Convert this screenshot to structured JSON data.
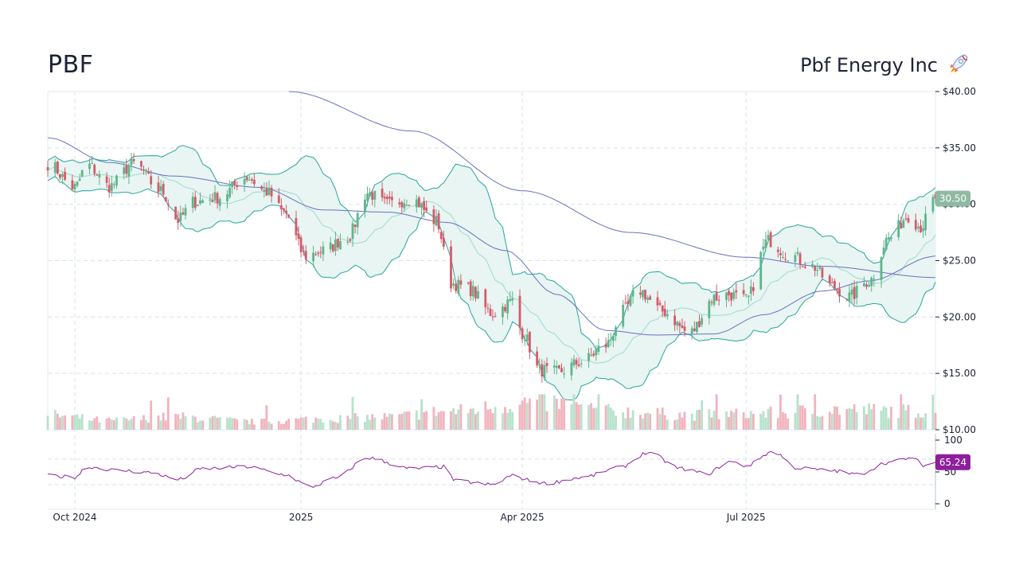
{
  "header": {
    "ticker": "PBF",
    "company": "Pbf Energy Inc"
  },
  "colors": {
    "up": "#5fb58a",
    "down": "#d65a6a",
    "band_line": "#26a69a",
    "band_fill": "#e8f5f3",
    "band_mid": "#9fd9cc",
    "ma": "#6a6fc0",
    "rsi": "#8e1f9c",
    "price_tag": "#8fb9a2",
    "rsi_tag": "#8e1f9c",
    "grid": "#d6e3ea"
  },
  "icons": {
    "logo": "rocket-logo-icon"
  },
  "chart_data": {
    "type": "candlestick",
    "price_axis": {
      "ylim": [
        10,
        40
      ],
      "ticks": [
        "$40.00",
        "$35.00",
        "$30.00",
        "$25.00",
        "$20.00",
        "$15.00",
        "$10.00"
      ]
    },
    "rsi_axis": {
      "ylim": [
        0,
        100
      ],
      "ticks": [
        "100",
        "50",
        "0"
      ]
    },
    "x_axis": {
      "date_range": [
        "2024-09-20",
        "2025-09-16"
      ],
      "labels": [
        {
          "date": "2024-10-01",
          "label": "Oct 2024"
        },
        {
          "date": "2025-01-01",
          "label": "2025"
        },
        {
          "date": "2025-04-01",
          "label": "Apr 2025"
        },
        {
          "date": "2025-07-01",
          "label": "Jul 2025"
        }
      ]
    },
    "last_price_label": "30.50",
    "last_rsi_label": "65.24",
    "grid": true,
    "close_key": [
      {
        "date": "2024-09-20",
        "v": 33.6
      },
      {
        "date": "2024-10-01",
        "v": 31.5
      },
      {
        "date": "2024-10-06",
        "v": 33.5
      },
      {
        "date": "2024-10-15",
        "v": 31.6
      },
      {
        "date": "2024-10-25",
        "v": 33.6
      },
      {
        "date": "2024-11-05",
        "v": 31.2
      },
      {
        "date": "2024-11-12",
        "v": 28.6
      },
      {
        "date": "2024-11-18",
        "v": 30.2
      },
      {
        "date": "2024-11-28",
        "v": 30.6
      },
      {
        "date": "2024-12-10",
        "v": 32.4
      },
      {
        "date": "2024-12-18",
        "v": 31.1
      },
      {
        "date": "2024-12-25",
        "v": 29.3
      },
      {
        "date": "2025-01-03",
        "v": 25.4
      },
      {
        "date": "2025-01-10",
        "v": 25.9
      },
      {
        "date": "2025-01-20",
        "v": 27.1
      },
      {
        "date": "2025-01-28",
        "v": 31.0
      },
      {
        "date": "2025-02-05",
        "v": 30.0
      },
      {
        "date": "2025-02-15",
        "v": 30.5
      },
      {
        "date": "2025-02-25",
        "v": 28.5
      },
      {
        "date": "2025-03-03",
        "v": 23.0
      },
      {
        "date": "2025-03-10",
        "v": 22.5
      },
      {
        "date": "2025-03-20",
        "v": 20.3
      },
      {
        "date": "2025-03-28",
        "v": 21.4
      },
      {
        "date": "2025-04-01",
        "v": 18.6
      },
      {
        "date": "2025-04-08",
        "v": 15.3
      },
      {
        "date": "2025-04-15",
        "v": 15.1
      },
      {
        "date": "2025-04-25",
        "v": 16.0
      },
      {
        "date": "2025-05-05",
        "v": 17.5
      },
      {
        "date": "2025-05-12",
        "v": 20.5
      },
      {
        "date": "2025-05-18",
        "v": 22.4
      },
      {
        "date": "2025-05-28",
        "v": 20.5
      },
      {
        "date": "2025-06-08",
        "v": 18.6
      },
      {
        "date": "2025-06-18",
        "v": 21.7
      },
      {
        "date": "2025-06-24",
        "v": 22.0
      },
      {
        "date": "2025-07-01",
        "v": 21.5
      },
      {
        "date": "2025-07-10",
        "v": 26.8
      },
      {
        "date": "2025-07-18",
        "v": 25.6
      },
      {
        "date": "2025-07-28",
        "v": 24.5
      },
      {
        "date": "2025-08-05",
        "v": 22.7
      },
      {
        "date": "2025-08-12",
        "v": 21.8
      },
      {
        "date": "2025-08-20",
        "v": 23.2
      },
      {
        "date": "2025-08-28",
        "v": 27.0
      },
      {
        "date": "2025-09-05",
        "v": 29.0
      },
      {
        "date": "2025-09-10",
        "v": 28.0
      },
      {
        "date": "2025-09-16",
        "v": 30.5
      }
    ],
    "rsi_key": [
      {
        "date": "2024-09-20",
        "v": 44
      },
      {
        "date": "2024-10-01",
        "v": 42
      },
      {
        "date": "2024-10-06",
        "v": 58
      },
      {
        "date": "2024-10-20",
        "v": 52
      },
      {
        "date": "2024-11-01",
        "v": 49
      },
      {
        "date": "2024-11-12",
        "v": 38
      },
      {
        "date": "2024-11-22",
        "v": 55
      },
      {
        "date": "2024-12-10",
        "v": 58
      },
      {
        "date": "2024-12-25",
        "v": 46
      },
      {
        "date": "2025-01-05",
        "v": 27
      },
      {
        "date": "2025-01-15",
        "v": 40
      },
      {
        "date": "2025-01-28",
        "v": 72
      },
      {
        "date": "2025-02-15",
        "v": 55
      },
      {
        "date": "2025-02-28",
        "v": 58
      },
      {
        "date": "2025-03-05",
        "v": 36
      },
      {
        "date": "2025-03-20",
        "v": 30
      },
      {
        "date": "2025-03-28",
        "v": 44
      },
      {
        "date": "2025-04-05",
        "v": 36
      },
      {
        "date": "2025-04-10",
        "v": 32
      },
      {
        "date": "2025-04-25",
        "v": 41
      },
      {
        "date": "2025-05-10",
        "v": 56
      },
      {
        "date": "2025-05-22",
        "v": 80
      },
      {
        "date": "2025-06-05",
        "v": 55
      },
      {
        "date": "2025-06-15",
        "v": 47
      },
      {
        "date": "2025-06-24",
        "v": 66
      },
      {
        "date": "2025-07-01",
        "v": 60
      },
      {
        "date": "2025-07-12",
        "v": 82
      },
      {
        "date": "2025-07-22",
        "v": 56
      },
      {
        "date": "2025-08-05",
        "v": 52
      },
      {
        "date": "2025-08-15",
        "v": 46
      },
      {
        "date": "2025-08-28",
        "v": 65
      },
      {
        "date": "2025-09-06",
        "v": 72
      },
      {
        "date": "2025-09-12",
        "v": 60
      },
      {
        "date": "2025-09-16",
        "v": 65
      }
    ],
    "ma_long_key": [
      {
        "date": "2024-12-27",
        "v": 40.0
      },
      {
        "date": "2025-02-15",
        "v": 36.5
      },
      {
        "date": "2025-04-01",
        "v": 31.2
      },
      {
        "date": "2025-05-15",
        "v": 27.5
      },
      {
        "date": "2025-07-01",
        "v": 25.3
      },
      {
        "date": "2025-08-01",
        "v": 24.5
      },
      {
        "date": "2025-09-16",
        "v": 23.5
      }
    ],
    "ma_mid_key": [
      {
        "date": "2024-09-20",
        "v": 35.9
      },
      {
        "date": "2024-10-15",
        "v": 33.7
      },
      {
        "date": "2024-11-10",
        "v": 32.5
      },
      {
        "date": "2024-12-15",
        "v": 31.5
      },
      {
        "date": "2025-01-10",
        "v": 29.5
      },
      {
        "date": "2025-02-05",
        "v": 29.3
      },
      {
        "date": "2025-03-01",
        "v": 28.4
      },
      {
        "date": "2025-03-25",
        "v": 25.9
      },
      {
        "date": "2025-04-15",
        "v": 22.0
      },
      {
        "date": "2025-05-05",
        "v": 18.8
      },
      {
        "date": "2025-05-25",
        "v": 18.4
      },
      {
        "date": "2025-06-18",
        "v": 18.5
      },
      {
        "date": "2025-07-08",
        "v": 20.2
      },
      {
        "date": "2025-08-01",
        "v": 22.3
      },
      {
        "date": "2025-08-20",
        "v": 23.2
      },
      {
        "date": "2025-09-16",
        "v": 25.4
      }
    ],
    "volume_key": [
      {
        "date": "2024-09-20",
        "v": 0.4
      },
      {
        "date": "2024-10-15",
        "v": 0.25
      },
      {
        "date": "2024-11-10",
        "v": 0.35
      },
      {
        "date": "2024-12-15",
        "v": 0.22
      },
      {
        "date": "2025-01-10",
        "v": 0.3
      },
      {
        "date": "2025-02-05",
        "v": 0.35
      },
      {
        "date": "2025-03-01",
        "v": 0.5
      },
      {
        "date": "2025-04-08",
        "v": 0.75
      },
      {
        "date": "2025-05-10",
        "v": 0.5
      },
      {
        "date": "2025-06-10",
        "v": 0.4
      },
      {
        "date": "2025-07-10",
        "v": 0.45
      },
      {
        "date": "2025-08-05",
        "v": 0.55
      },
      {
        "date": "2025-09-16",
        "v": 0.5
      }
    ]
  }
}
